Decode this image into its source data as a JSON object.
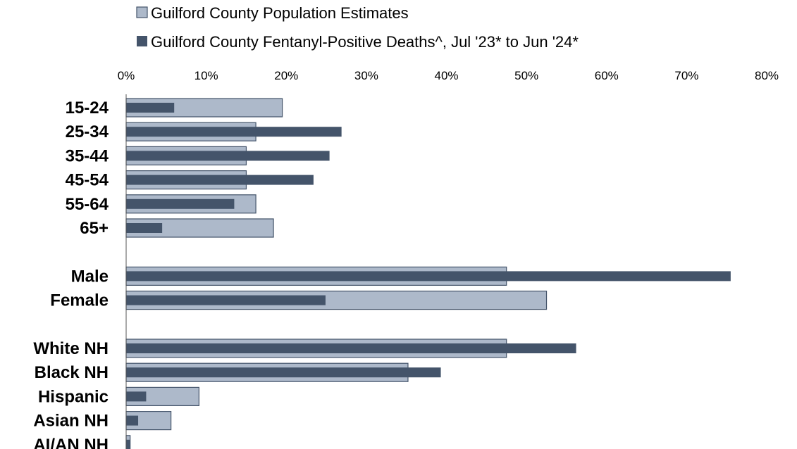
{
  "chart_data": {
    "type": "bar",
    "orientation": "horizontal",
    "categories": [
      "15-24",
      "25-34",
      "35-44",
      "45-54",
      "55-64",
      "65+",
      "Male",
      "Female",
      "White NH",
      "Black NH",
      "Hispanic",
      "Asian NH",
      "AI/AN NH"
    ],
    "group_breaks_after": [
      "65+",
      "Female"
    ],
    "series": [
      {
        "name": "Guilford County Population Estimates",
        "color": "#adb9ca",
        "values": [
          19.5,
          16.2,
          15.0,
          15.0,
          16.2,
          18.4,
          47.5,
          52.5,
          47.5,
          35.2,
          9.1,
          5.6,
          0.5
        ]
      },
      {
        "name": "Guilford County Fentanyl-Positive Deaths^, Jul '23* to Jun '24*",
        "color": "#44546a",
        "values": [
          6.0,
          26.9,
          25.4,
          23.4,
          13.5,
          4.5,
          75.5,
          24.9,
          56.2,
          39.3,
          2.5,
          1.5,
          0.5
        ]
      }
    ],
    "xlim": [
      0,
      80
    ],
    "x_ticks": [
      "0%",
      "10%",
      "20%",
      "30%",
      "40%",
      "50%",
      "60%",
      "70%",
      "80%"
    ],
    "x_axis_position": "top",
    "legend_position": "top",
    "grid": false
  }
}
